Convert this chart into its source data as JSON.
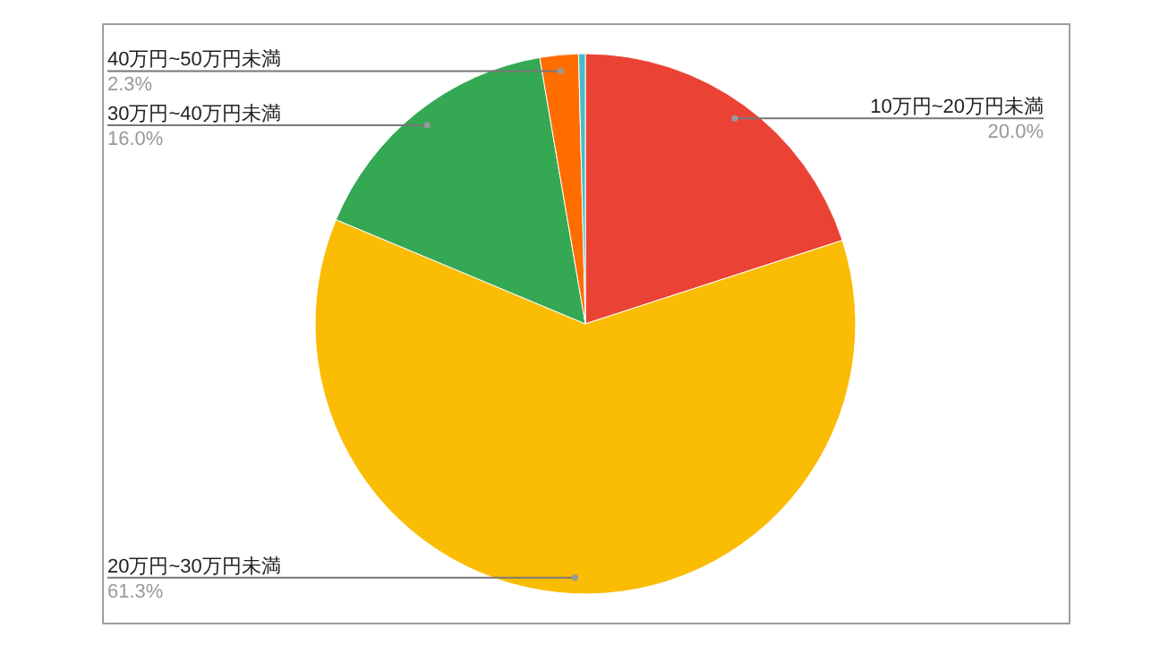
{
  "chart_data": {
    "type": "pie",
    "categories": [
      "10万円~20万円未満",
      "20万円~30万円未満",
      "30万円~40万円未満",
      "40万円~50万円未満",
      null
    ],
    "values": [
      20.0,
      61.3,
      16.0,
      2.3,
      0.4
    ],
    "colors": [
      "#ea4335",
      "#fbbc04",
      "#34a853",
      "#ff6d01",
      "#46bdc6"
    ],
    "value_labels": [
      "20.0%",
      "61.3%",
      "16.0%",
      "2.3%",
      null
    ],
    "legend": false
  }
}
